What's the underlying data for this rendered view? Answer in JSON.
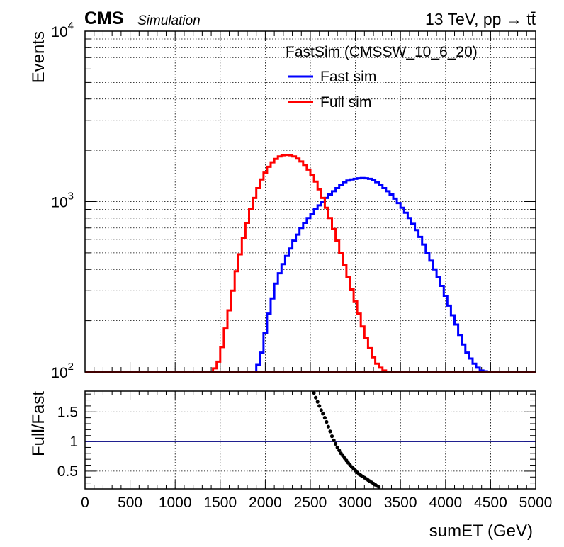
{
  "header": {
    "experiment": "CMS",
    "tag": "Simulation",
    "process": "13 TeV, pp → tt̄"
  },
  "chart_data": [
    {
      "type": "line",
      "panel": "main",
      "xlabel": "",
      "ylabel": "Events",
      "xlim": [
        0,
        5000
      ],
      "ylim": [
        100,
        10000
      ],
      "log_y": true,
      "grid": true,
      "y_ticks": [
        {
          "value": 100,
          "base": "10",
          "exp": "2"
        },
        {
          "value": 1000,
          "base": "10",
          "exp": "3"
        },
        {
          "value": 10000,
          "base": "10",
          "exp": "4"
        }
      ],
      "legend": {
        "title": "FastSim (CMSSW_10_6_20)",
        "placement": "top-right"
      },
      "series": [
        {
          "name": "Fast sim",
          "color": "#0000ff",
          "x": [
            1880,
            1920,
            1960,
            2000,
            2040,
            2080,
            2120,
            2160,
            2200,
            2240,
            2280,
            2320,
            2360,
            2400,
            2440,
            2480,
            2520,
            2560,
            2600,
            2640,
            2680,
            2720,
            2760,
            2800,
            2840,
            2880,
            2920,
            2960,
            3000,
            3040,
            3080,
            3120,
            3160,
            3200,
            3240,
            3280,
            3320,
            3360,
            3400,
            3440,
            3480,
            3520,
            3560,
            3600,
            3640,
            3680,
            3720,
            3760,
            3800,
            3840,
            3880,
            3920,
            3960,
            4000,
            4040,
            4080,
            4120,
            4160,
            4200,
            4240,
            4280,
            4320,
            4360,
            4400,
            4440,
            4480,
            4520,
            4560,
            4600
          ],
          "y": [
            100,
            110,
            130,
            170,
            220,
            270,
            330,
            380,
            430,
            480,
            530,
            590,
            640,
            700,
            750,
            800,
            850,
            900,
            950,
            1000,
            1050,
            1100,
            1150,
            1200,
            1250,
            1300,
            1330,
            1350,
            1360,
            1370,
            1375,
            1370,
            1360,
            1340,
            1300,
            1250,
            1200,
            1150,
            1100,
            1040,
            980,
            920,
            860,
            800,
            740,
            680,
            620,
            560,
            500,
            450,
            400,
            360,
            320,
            280,
            245,
            215,
            190,
            165,
            145,
            130,
            120,
            112,
            106,
            102,
            101,
            100,
            100,
            100,
            100
          ]
        },
        {
          "name": "Full sim",
          "color": "#ff0000",
          "x": [
            1400,
            1440,
            1480,
            1520,
            1560,
            1600,
            1640,
            1680,
            1720,
            1760,
            1800,
            1840,
            1880,
            1920,
            1960,
            2000,
            2040,
            2080,
            2120,
            2160,
            2200,
            2240,
            2280,
            2320,
            2360,
            2400,
            2440,
            2480,
            2520,
            2560,
            2600,
            2640,
            2680,
            2720,
            2760,
            2800,
            2840,
            2880,
            2920,
            2960,
            3000,
            3040,
            3080,
            3120,
            3160,
            3200,
            3240,
            3280,
            3320,
            3360,
            3400,
            3440,
            3480,
            3520
          ],
          "y": [
            100,
            105,
            115,
            140,
            180,
            230,
            300,
            390,
            490,
            610,
            750,
            900,
            1050,
            1200,
            1350,
            1480,
            1600,
            1700,
            1780,
            1840,
            1870,
            1880,
            1870,
            1840,
            1790,
            1720,
            1640,
            1540,
            1430,
            1310,
            1180,
            1050,
            920,
            800,
            690,
            590,
            500,
            425,
            360,
            305,
            260,
            220,
            185,
            158,
            138,
            122,
            112,
            106,
            102,
            100,
            100,
            100,
            100,
            100
          ]
        }
      ]
    },
    {
      "type": "scatter",
      "panel": "ratio",
      "xlabel": "sumET (GeV)",
      "ylabel": "Full/Fast",
      "xlim": [
        0,
        5000
      ],
      "ylim": [
        0.2,
        1.85
      ],
      "grid": true,
      "x_ticks": [
        "0",
        "500",
        "1000",
        "1500",
        "2000",
        "2500",
        "3000",
        "3500",
        "4000",
        "4500",
        "5000"
      ],
      "y_ticks": [
        {
          "value": 0.5,
          "label": "0.5"
        },
        {
          "value": 1,
          "label": "1"
        },
        {
          "value": 1.5,
          "label": "1.5"
        }
      ],
      "reference_line": {
        "value": 1,
        "color": "#000080"
      },
      "points": {
        "color": "#000000",
        "x": [
          2540,
          2560,
          2580,
          2600,
          2620,
          2640,
          2660,
          2680,
          2700,
          2720,
          2740,
          2760,
          2780,
          2800,
          2820,
          2840,
          2860,
          2880,
          2900,
          2920,
          2940,
          2960,
          2980,
          3000,
          3020,
          3040,
          3060,
          3080,
          3100,
          3120,
          3140,
          3160,
          3180,
          3200,
          3220,
          3240,
          3260
        ],
        "y": [
          1.82,
          1.74,
          1.67,
          1.6,
          1.53,
          1.47,
          1.4,
          1.33,
          1.25,
          1.17,
          1.09,
          1.02,
          0.96,
          0.9,
          0.85,
          0.8,
          0.76,
          0.72,
          0.68,
          0.64,
          0.6,
          0.57,
          0.54,
          0.51,
          0.48,
          0.45,
          0.43,
          0.41,
          0.39,
          0.37,
          0.35,
          0.33,
          0.31,
          0.29,
          0.27,
          0.25,
          0.23
        ]
      }
    }
  ]
}
